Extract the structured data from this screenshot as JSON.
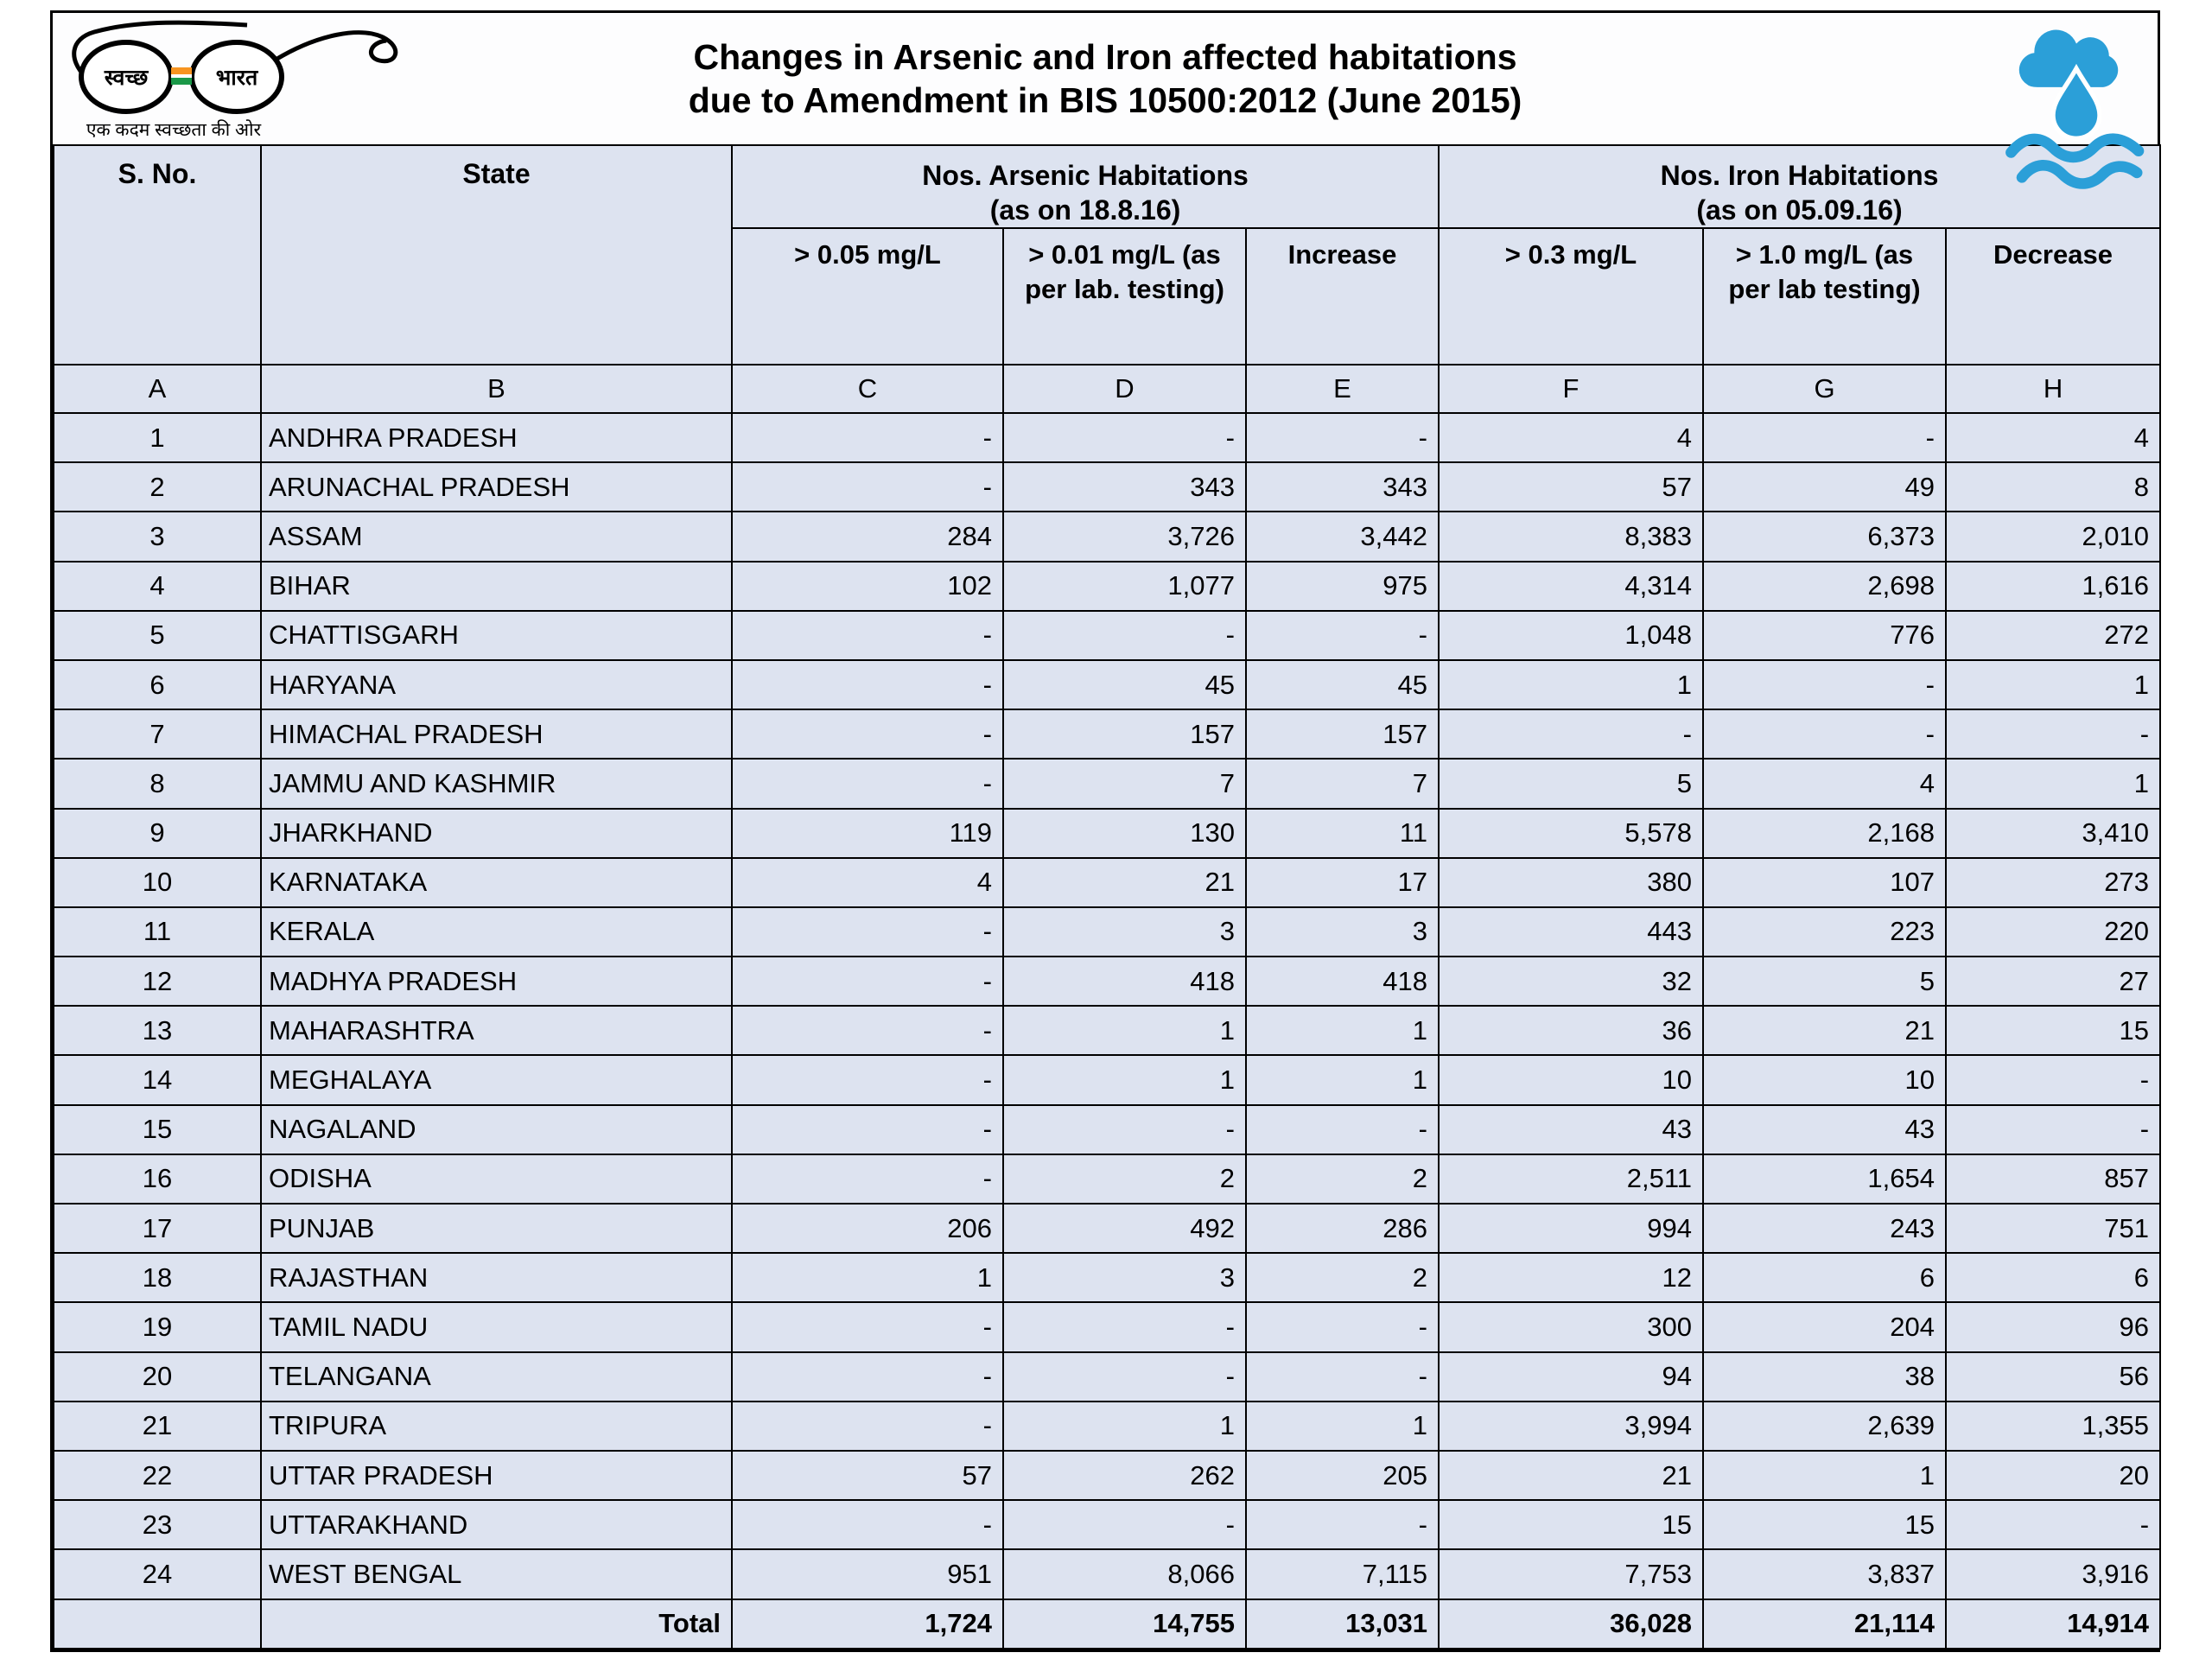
{
  "title": {
    "line1": "Changes in Arsenic and Iron affected habitations",
    "line2": "due to Amendment in BIS 10500:2012 (June 2015)"
  },
  "logos": {
    "swachh": {
      "lens_left": "स्वच्छ",
      "lens_right": "भारत",
      "tagline": "एक कदम स्वच्छता की ओर"
    }
  },
  "colors": {
    "row_fill": "#dde3f0",
    "border": "#000000",
    "logo_blue": "#2b9fd8",
    "flag_saffron": "#f79420",
    "flag_green": "#1a9848"
  },
  "table": {
    "headers": {
      "sno": "S. No.",
      "state": "State",
      "arsenic_group": "Nos. Arsenic Habitations",
      "arsenic_date": "(as on 18.8.16)",
      "iron_group": "Nos. Iron Habitations",
      "iron_date": "(as on 05.09.16)",
      "col_c": "> 0.05 mg/L",
      "col_d": "> 0.01 mg/L (as per lab. testing)",
      "col_e": "Increase",
      "col_f": "> 0.3 mg/L",
      "col_g": "> 1.0 mg/L (as per lab testing)",
      "col_h": "Decrease"
    },
    "letters": [
      "A",
      "B",
      "C",
      "D",
      "E",
      "F",
      "G",
      "H"
    ],
    "rows": [
      [
        "1",
        "ANDHRA PRADESH",
        "-",
        "-",
        "-",
        "4",
        "-",
        "4"
      ],
      [
        "2",
        "ARUNACHAL PRADESH",
        "-",
        "343",
        "343",
        "57",
        "49",
        "8"
      ],
      [
        "3",
        "ASSAM",
        "284",
        "3,726",
        "3,442",
        "8,383",
        "6,373",
        "2,010"
      ],
      [
        "4",
        "BIHAR",
        "102",
        "1,077",
        "975",
        "4,314",
        "2,698",
        "1,616"
      ],
      [
        "5",
        "CHATTISGARH",
        "-",
        "-",
        "-",
        "1,048",
        "776",
        "272"
      ],
      [
        "6",
        "HARYANA",
        "-",
        "45",
        "45",
        "1",
        "-",
        "1"
      ],
      [
        "7",
        "HIMACHAL PRADESH",
        "-",
        "157",
        "157",
        "-",
        "-",
        "-"
      ],
      [
        "8",
        "JAMMU AND KASHMIR",
        "-",
        "7",
        "7",
        "5",
        "4",
        "1"
      ],
      [
        "9",
        "JHARKHAND",
        "119",
        "130",
        "11",
        "5,578",
        "2,168",
        "3,410"
      ],
      [
        "10",
        "KARNATAKA",
        "4",
        "21",
        "17",
        "380",
        "107",
        "273"
      ],
      [
        "11",
        "KERALA",
        "-",
        "3",
        "3",
        "443",
        "223",
        "220"
      ],
      [
        "12",
        "MADHYA PRADESH",
        "-",
        "418",
        "418",
        "32",
        "5",
        "27"
      ],
      [
        "13",
        "MAHARASHTRA",
        "-",
        "1",
        "1",
        "36",
        "21",
        "15"
      ],
      [
        "14",
        "MEGHALAYA",
        "-",
        "1",
        "1",
        "10",
        "10",
        "-"
      ],
      [
        "15",
        "NAGALAND",
        "-",
        "-",
        "-",
        "43",
        "43",
        "-"
      ],
      [
        "16",
        "ODISHA",
        "-",
        "2",
        "2",
        "2,511",
        "1,654",
        "857"
      ],
      [
        "17",
        "PUNJAB",
        "206",
        "492",
        "286",
        "994",
        "243",
        "751"
      ],
      [
        "18",
        "RAJASTHAN",
        "1",
        "3",
        "2",
        "12",
        "6",
        "6"
      ],
      [
        "19",
        "TAMIL NADU",
        "-",
        "-",
        "-",
        "300",
        "204",
        "96"
      ],
      [
        "20",
        "TELANGANA",
        "-",
        "-",
        "-",
        "94",
        "38",
        "56"
      ],
      [
        "21",
        "TRIPURA",
        "-",
        "1",
        "1",
        "3,994",
        "2,639",
        "1,355"
      ],
      [
        "22",
        "UTTAR PRADESH",
        "57",
        "262",
        "205",
        "21",
        "1",
        "20"
      ],
      [
        "23",
        "UTTARAKHAND",
        "-",
        "-",
        "-",
        "15",
        "15",
        "-"
      ],
      [
        "24",
        "WEST BENGAL",
        "951",
        "8,066",
        "7,115",
        "7,753",
        "3,837",
        "3,916"
      ]
    ],
    "total_row": [
      "",
      "Total",
      "1,724",
      "14,755",
      "13,031",
      "36,028",
      "21,114",
      "14,914"
    ]
  }
}
